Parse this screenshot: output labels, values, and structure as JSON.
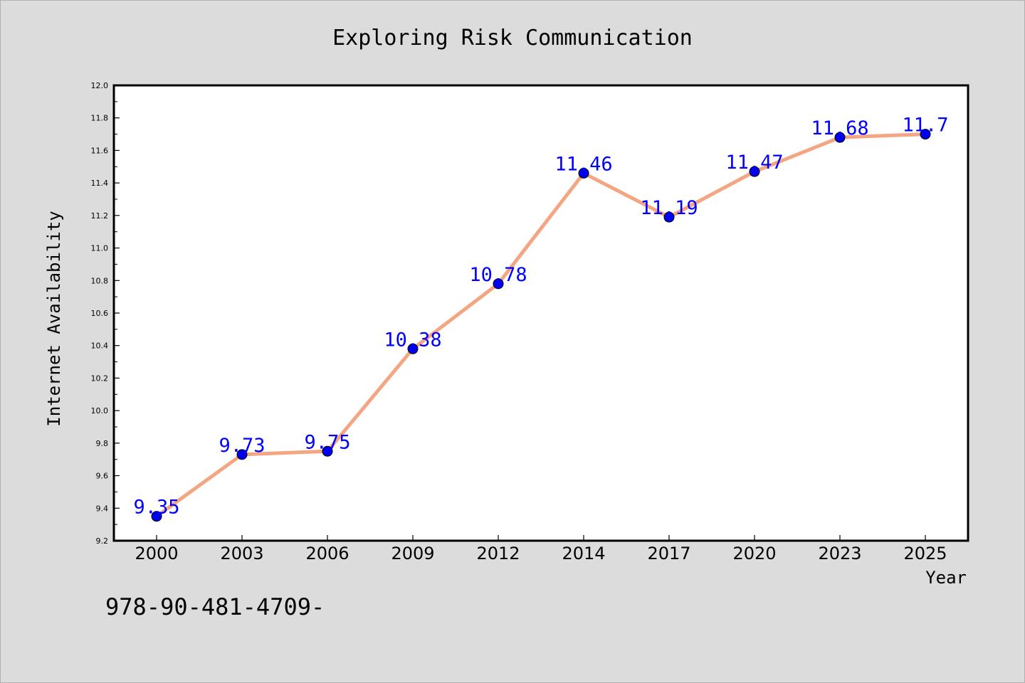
{
  "chart_data": {
    "type": "line",
    "title": "Exploring Risk Communication",
    "xlabel": "Year",
    "ylabel": "Internet Availability",
    "categories": [
      "2000",
      "2003",
      "2006",
      "2009",
      "2012",
      "2014",
      "2017",
      "2020",
      "2023",
      "2025"
    ],
    "series": [
      {
        "values": [
          9.35,
          9.73,
          9.75,
          10.38,
          10.78,
          11.46,
          11.19,
          11.47,
          11.68,
          11.7
        ],
        "labels": [
          "9.35",
          "9.73",
          "9.75",
          "10.38",
          "10.78",
          "11.46",
          "11.19",
          "11.47",
          "11.68",
          "11.7"
        ],
        "line_color": "#f4a582",
        "marker_color": "#0000ee",
        "label_color": "#0000ff"
      }
    ],
    "ylim": [
      9.2,
      12.0
    ],
    "y_ticks": [
      "9.2",
      "9.4",
      "9.6",
      "9.8",
      "10.0",
      "10.2",
      "10.4",
      "10.6",
      "10.8",
      "11.0",
      "11.2",
      "11.4",
      "11.6",
      "11.8",
      "12.0"
    ],
    "grid": false,
    "legend": "none"
  },
  "footer_text": "978-90-481-4709-",
  "colors": {
    "background": "#dcdcdc",
    "plot_background": "#ffffff",
    "axis": "#000000",
    "text": "#000000"
  }
}
